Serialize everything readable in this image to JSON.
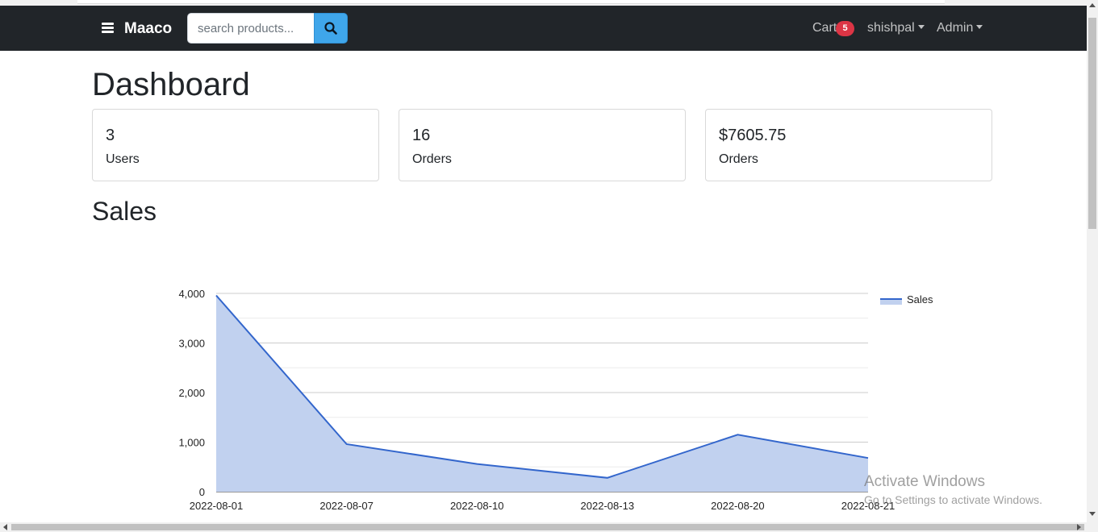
{
  "navbar": {
    "brand": "Maaco",
    "menu_icon": "hamburger-menu-icon",
    "search": {
      "placeholder": "search products...",
      "value": "",
      "button_icon": "search-icon"
    },
    "cart": {
      "label": "Cart",
      "count": "5"
    },
    "user_menu": "shishpal",
    "admin_menu": "Admin"
  },
  "dashboard": {
    "title": "Dashboard",
    "stats": [
      {
        "value": "3",
        "label": "Users"
      },
      {
        "value": "16",
        "label": "Orders"
      },
      {
        "value": "$7605.75",
        "label": "Orders"
      }
    ]
  },
  "sales": {
    "title": "Sales"
  },
  "chart_data": {
    "type": "area",
    "title": "",
    "xlabel": "",
    "ylabel": "",
    "categories": [
      "2022-08-01",
      "2022-08-07",
      "2022-08-10",
      "2022-08-13",
      "2022-08-20",
      "2022-08-21"
    ],
    "series": [
      {
        "name": "Sales",
        "values": [
          3960,
          960,
          560,
          280,
          1150,
          680
        ]
      }
    ],
    "ylim": [
      0,
      4000
    ],
    "yticks": [
      0,
      1000,
      2000,
      3000,
      4000
    ],
    "ytick_labels": [
      "0",
      "1,000",
      "2,000",
      "3,000",
      "4,000"
    ],
    "grid": true,
    "legend_position": "right",
    "colors": {
      "line": "#3366cc",
      "fill": "#c1d1ef",
      "gridline": "#cccccc",
      "minor_gridline": "#ebebeb"
    }
  },
  "watermark": {
    "title": "Activate Windows",
    "subtitle": "Go to Settings to activate Windows."
  },
  "colors": {
    "navbar": "#212529",
    "search_button": "#3fa6ea",
    "badge": "#dc3545"
  }
}
